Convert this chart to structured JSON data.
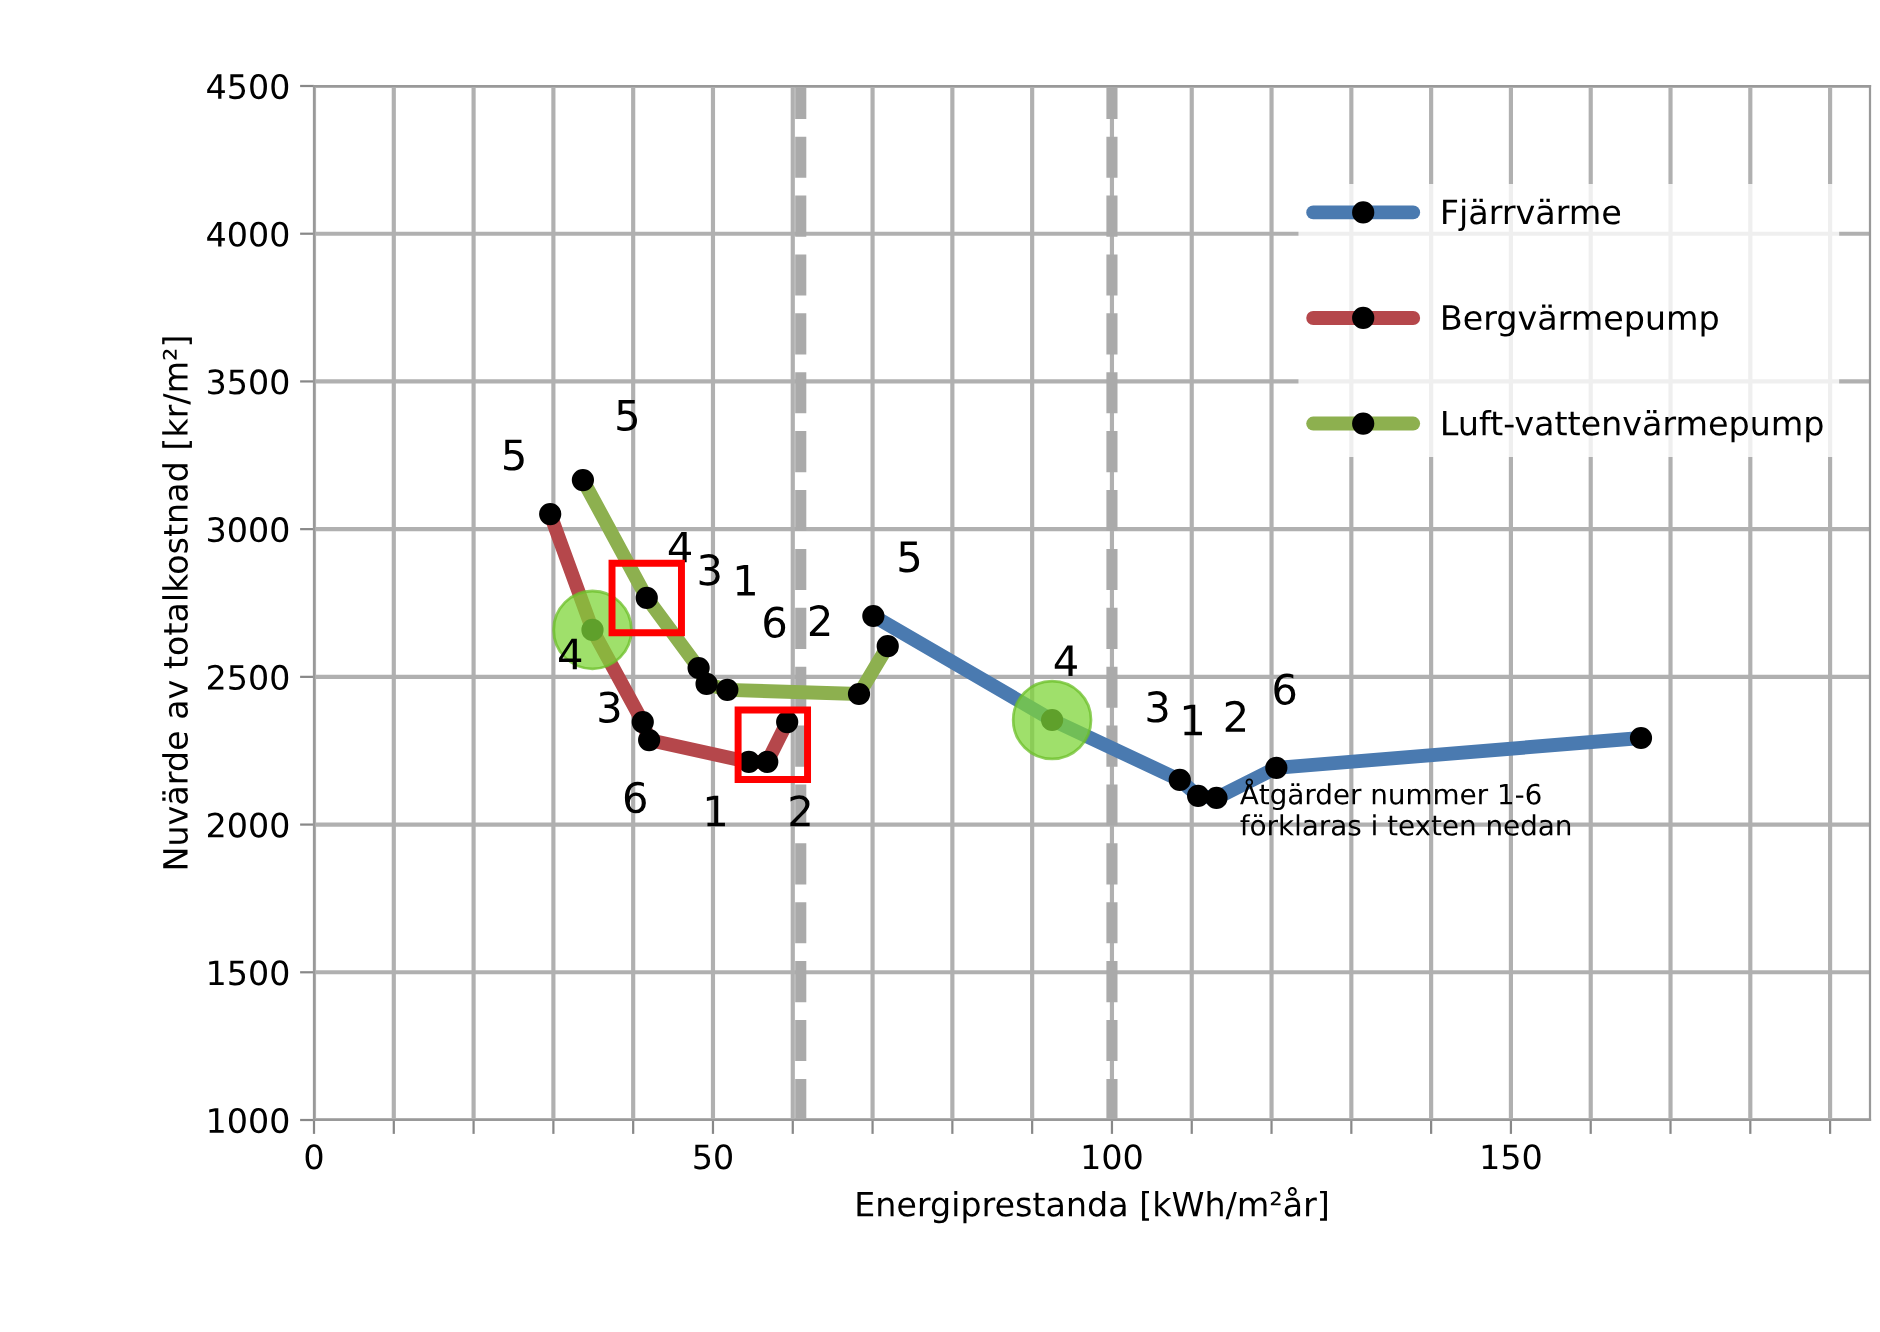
{
  "chart_data": {
    "type": "line",
    "xlabel": "Energiprestanda [kWh/m²år]",
    "ylabel": "Nuvärde av totalkostnad [kr/m²]",
    "xlim": [
      0,
      195
    ],
    "ylim": [
      1000,
      4500
    ],
    "xticks": [
      0,
      {
        "value": 10,
        "label": null
      },
      {
        "value": 20,
        "label": null
      },
      {
        "value": 30,
        "label": null
      },
      {
        "value": 40,
        "label": null
      },
      50,
      {
        "value": 60,
        "label": null
      },
      {
        "value": 70,
        "label": null
      },
      {
        "value": 80,
        "label": null
      },
      {
        "value": 90,
        "label": null
      },
      100,
      {
        "value": 110,
        "label": null
      },
      {
        "value": 120,
        "label": null
      },
      {
        "value": 130,
        "label": null
      },
      {
        "value": 140,
        "label": null
      },
      150,
      {
        "value": 160,
        "label": null
      },
      {
        "value": 170,
        "label": null
      },
      {
        "value": 180,
        "label": null
      },
      {
        "value": 190,
        "label": null
      }
    ],
    "yticks": [
      1000,
      1500,
      2000,
      2500,
      3000,
      3500,
      4000,
      4500
    ],
    "grid": true,
    "legend": "top right",
    "marker": "circle",
    "line_style": "solid",
    "series": [
      {
        "name": "Fjärrvärme",
        "color": "#4a7ab0",
        "x": [
          70.1,
          92.5,
          108.5,
          110.8,
          113.1,
          120.6,
          166.3
        ],
        "values": [
          2706,
          2354,
          2151,
          2097,
          2090,
          2192,
          2293
        ]
      },
      {
        "name": "Bergvärmepump",
        "color": "#b5474b",
        "x": [
          29.6,
          34.9,
          41.2,
          42.0,
          54.5,
          56.8,
          59.3
        ],
        "values": [
          3051,
          2659,
          2347,
          2286,
          2212,
          2212,
          2347
        ]
      },
      {
        "name": "Luft-vattenvärmepump",
        "color": "#8db04f",
        "x": [
          33.7,
          41.7,
          48.2,
          49.2,
          51.8,
          68.3,
          71.9
        ],
        "values": [
          3166,
          2767,
          2530,
          2476,
          2456,
          2442,
          2604
        ]
      }
    ],
    "ref_lines": [
      {
        "axis": "x",
        "value": 61,
        "label": null,
        "color": "#aaaaaa",
        "line_style": "dashed"
      },
      {
        "axis": "x",
        "value": 100,
        "label": null,
        "color": "#aaaaaa",
        "line_style": "dashed"
      }
    ],
    "annotations": [
      {
        "text": "5",
        "x": 29.6,
        "y": 3051
      },
      {
        "text": "4",
        "x": 34.9,
        "y": 2659
      },
      {
        "text": "3",
        "x": 41.2,
        "y": 2347
      },
      {
        "text": "6",
        "x": 42.0,
        "y": 2286
      },
      {
        "text": "1",
        "x": 54.5,
        "y": 2212
      },
      {
        "text": "2",
        "x": 56.8,
        "y": 2212
      },
      {
        "text": "5",
        "x": 33.7,
        "y": 3166
      },
      {
        "text": "4",
        "x": 41.7,
        "y": 2767
      },
      {
        "text": "3",
        "x": 48.2,
        "y": 2530
      },
      {
        "text": "1",
        "x": 49.2,
        "y": 2476
      },
      {
        "text": "6",
        "x": 51.8,
        "y": 2456
      },
      {
        "text": "2",
        "x": 68.3,
        "y": 2442
      },
      {
        "text": "5",
        "x": 70.1,
        "y": 2706
      },
      {
        "text": "4",
        "x": 92.5,
        "y": 2354
      },
      {
        "text": "3",
        "x": 108.5,
        "y": 2151
      },
      {
        "text": "1",
        "x": 110.8,
        "y": 2097
      },
      {
        "text": "2",
        "x": 113.1,
        "y": 2090
      },
      {
        "text": "6",
        "x": 120.6,
        "y": 2192
      },
      "Åtgärder nummer 1-6\nförklaras i texten nedan"
    ]
  }
}
